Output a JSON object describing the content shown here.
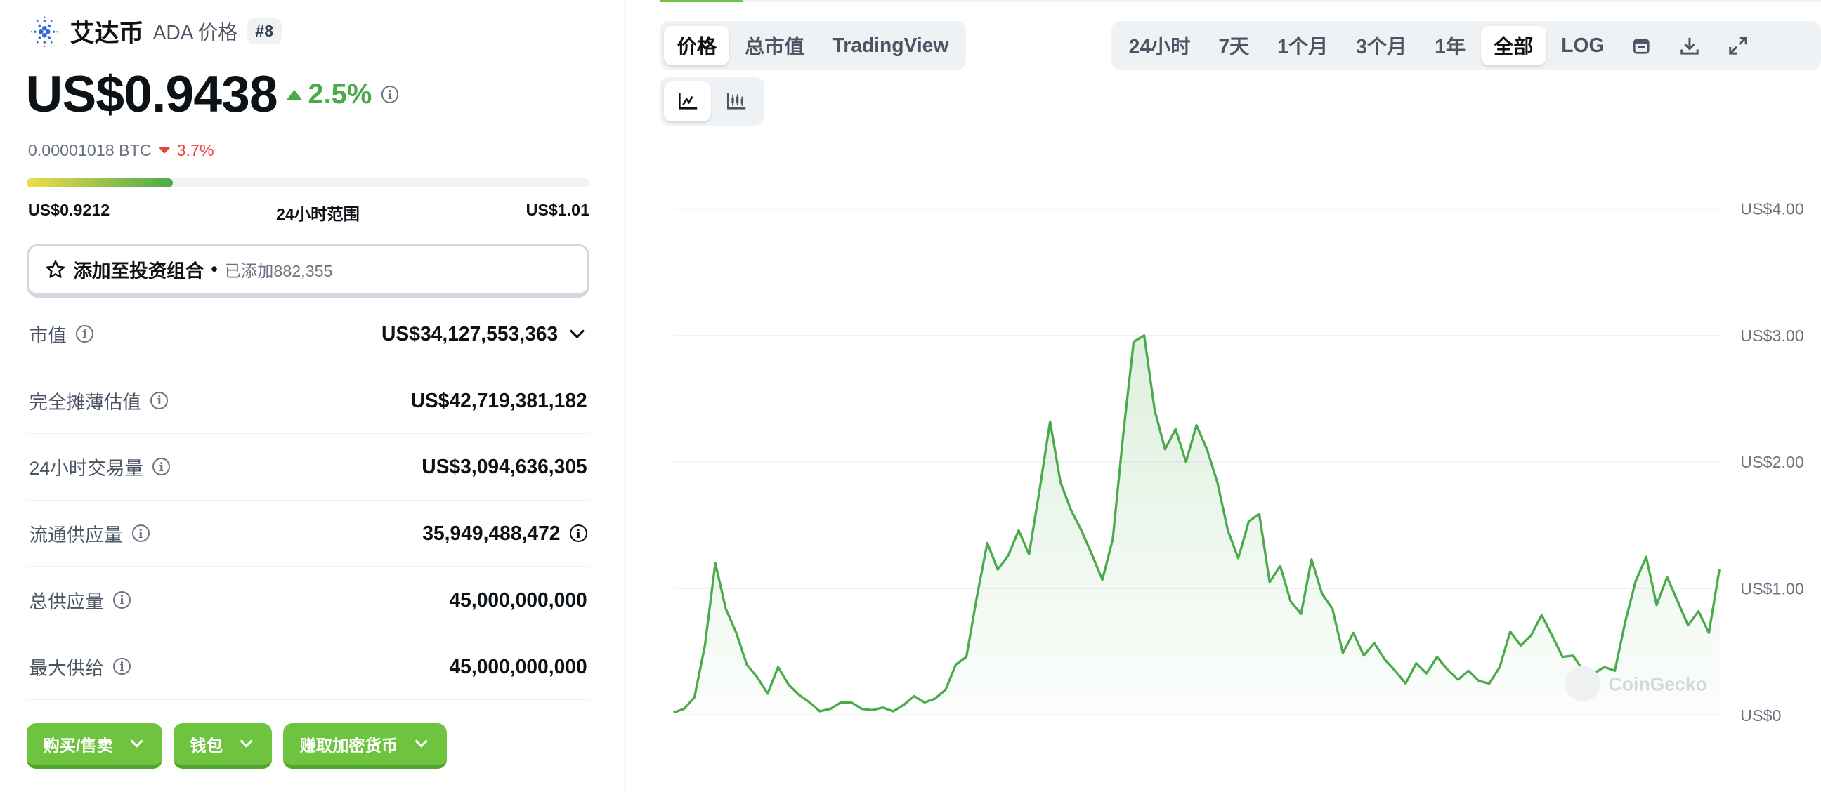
{
  "coin": {
    "name": "艾达币",
    "symbol_label": "ADA 价格",
    "rank": "#8",
    "brand_color": "#3468d1"
  },
  "price": {
    "value": "US$0.9438",
    "change": "2.5%",
    "btc_value": "0.00001018 BTC",
    "btc_change": "3.7%",
    "up_color": "#4baa4b",
    "down_color": "#e5433b"
  },
  "range": {
    "low": "US$0.9212",
    "label": "24小时范围",
    "high": "US$1.01",
    "position_pct": 26
  },
  "portfolio": {
    "label": "添加至投资组合",
    "count": "已添加882,355"
  },
  "stats": [
    {
      "label": "市值",
      "value": "US$34,127,553,363"
    },
    {
      "label": "完全摊薄估值",
      "value": "US$42,719,381,182"
    },
    {
      "label": "24小时交易量",
      "value": "US$3,094,636,305"
    },
    {
      "label": "流通供应量",
      "value": "35,949,488,472"
    },
    {
      "label": "总供应量",
      "value": "45,000,000,000"
    },
    {
      "label": "最大供给",
      "value": "45,000,000,000"
    }
  ],
  "actions": [
    {
      "label": "购买/售卖"
    },
    {
      "label": "钱包"
    },
    {
      "label": "赚取加密货币"
    }
  ],
  "chart_tabs": [
    {
      "label": "价格",
      "active": true
    },
    {
      "label": "总市值"
    },
    {
      "label": "TradingView"
    }
  ],
  "time_ranges": [
    {
      "label": "24小时"
    },
    {
      "label": "7天"
    },
    {
      "label": "1个月"
    },
    {
      "label": "3个月"
    },
    {
      "label": "1年"
    },
    {
      "label": "全部",
      "active": true
    },
    {
      "label": "LOG"
    }
  ],
  "chart_type_icons": [
    "line-chart-icon",
    "candlestick-icon"
  ],
  "tool_icons": [
    "calendar-icon",
    "download-icon",
    "fullscreen-icon"
  ],
  "watermark": "CoinGecko",
  "chart_data": {
    "type": "area",
    "line_color": "#4baa4b",
    "ylim": [
      0,
      4
    ],
    "y_ticks": [
      "US$0",
      "US$1.00",
      "US$2.00",
      "US$3.00",
      "US$4.00"
    ],
    "y_tick_values": [
      0,
      1,
      2,
      3,
      4
    ],
    "grid": true,
    "values": [
      0.02,
      0.05,
      0.14,
      0.55,
      1.2,
      0.84,
      0.65,
      0.4,
      0.3,
      0.17,
      0.38,
      0.24,
      0.16,
      0.1,
      0.03,
      0.05,
      0.1,
      0.1,
      0.05,
      0.04,
      0.06,
      0.03,
      0.08,
      0.15,
      0.1,
      0.13,
      0.2,
      0.4,
      0.46,
      0.93,
      1.36,
      1.15,
      1.26,
      1.46,
      1.27,
      1.78,
      2.32,
      1.84,
      1.62,
      1.46,
      1.27,
      1.07,
      1.39,
      2.22,
      2.95,
      3.0,
      2.41,
      2.1,
      2.26,
      2.0,
      2.29,
      2.1,
      1.84,
      1.46,
      1.24,
      1.53,
      1.59,
      1.05,
      1.18,
      0.9,
      0.8,
      1.23,
      0.96,
      0.84,
      0.49,
      0.65,
      0.47,
      0.57,
      0.44,
      0.35,
      0.25,
      0.41,
      0.33,
      0.46,
      0.36,
      0.28,
      0.35,
      0.27,
      0.25,
      0.38,
      0.66,
      0.55,
      0.63,
      0.79,
      0.63,
      0.46,
      0.47,
      0.35,
      0.33,
      0.38,
      0.35,
      0.74,
      1.06,
      1.25,
      0.87,
      1.09,
      0.9,
      0.71,
      0.82,
      0.65,
      1.15
    ]
  }
}
